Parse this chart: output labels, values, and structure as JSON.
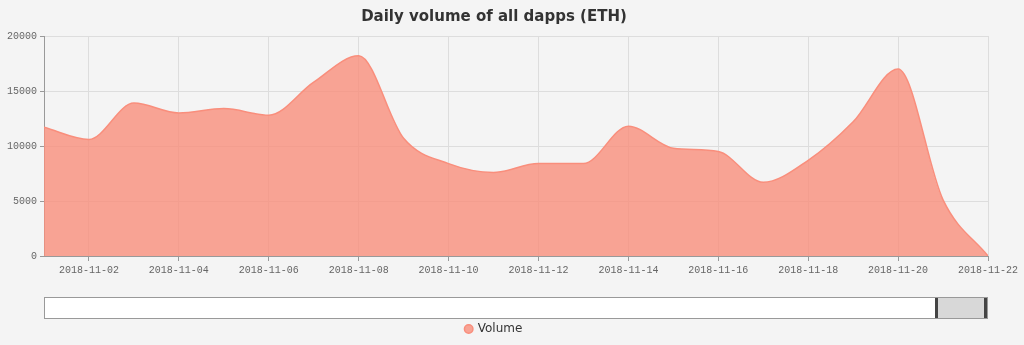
{
  "chart_data": {
    "type": "area",
    "title": "Daily volume of all dapps (ETH)",
    "x": [
      "2018-11-01",
      "2018-11-02",
      "2018-11-03",
      "2018-11-04",
      "2018-11-05",
      "2018-11-06",
      "2018-11-07",
      "2018-11-08",
      "2018-11-09",
      "2018-11-10",
      "2018-11-11",
      "2018-11-12",
      "2018-11-13",
      "2018-11-14",
      "2018-11-15",
      "2018-11-16",
      "2018-11-17",
      "2018-11-18",
      "2018-11-19",
      "2018-11-20",
      "2018-11-21",
      "2018-11-22"
    ],
    "series": [
      {
        "name": "Volume",
        "color": "#f98e7c",
        "values": [
          11700,
          10600,
          13900,
          13000,
          13400,
          12800,
          15800,
          18200,
          10700,
          8400,
          7600,
          8400,
          8400,
          11800,
          9800,
          9500,
          6700,
          8700,
          12200,
          17000,
          5100,
          0
        ]
      }
    ],
    "xlim": [
      "2018-11-01",
      "2018-11-22"
    ],
    "xticks": [
      "2018-11-02",
      "2018-11-04",
      "2018-11-06",
      "2018-11-08",
      "2018-11-10",
      "2018-11-12",
      "2018-11-14",
      "2018-11-16",
      "2018-11-18",
      "2018-11-20",
      "2018-11-22"
    ],
    "ylim": [
      0,
      20000
    ],
    "yticks": [
      0,
      5000,
      10000,
      15000,
      20000
    ],
    "grid": true,
    "legend": "bottom"
  }
}
